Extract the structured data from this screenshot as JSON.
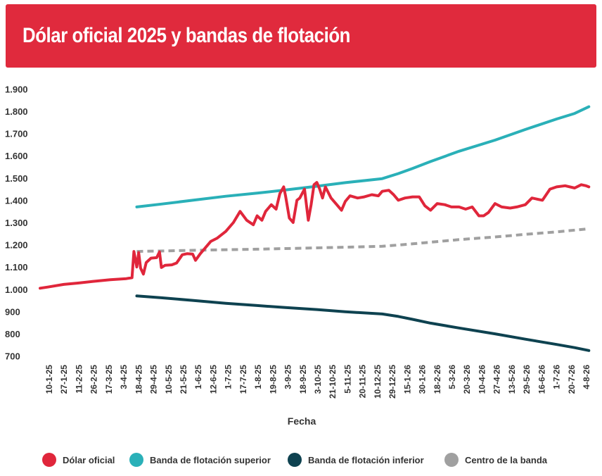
{
  "title": "Dólar oficial 2025 y bandas de flotación",
  "chart_data": {
    "type": "line",
    "xlabel": "Fecha",
    "ylabel": "",
    "ylim": [
      680,
      1920
    ],
    "yticks": [
      700,
      800,
      900,
      1000,
      1100,
      1200,
      1300,
      1400,
      1500,
      1600,
      1700,
      1800,
      1900
    ],
    "ytick_labels": [
      "700",
      "800",
      "900",
      "1.000",
      "1.100",
      "1.200",
      "1.300",
      "1.400",
      "1.500",
      "1.600",
      "1.700",
      "1.800",
      "1.900"
    ],
    "xlim": [
      "2025-01-02",
      "2026-08-06"
    ],
    "xtick_labels": [
      "10-1-25",
      "27-1-25",
      "11-2-25",
      "26-2-25",
      "17-3-25",
      "3-4-25",
      "18-4-25",
      "29-4-25",
      "10-5-25",
      "21-5-25",
      "1-6-25",
      "12-6-25",
      "1-7-25",
      "17-7-25",
      "1-8-25",
      "19-8-25",
      "3-9-25",
      "18-9-25",
      "3-10-25",
      "21-10-25",
      "5-11-25",
      "20-11-25",
      "10-12-25",
      "29-12-25",
      "15-1-26",
      "30-1-26",
      "18-2-26",
      "5-3-26",
      "20-3-26",
      "10-4-26",
      "27-4-26",
      "13-5-26",
      "29-5-26",
      "16-6-26",
      "1-7-26",
      "20-7-26",
      "4-8-26"
    ],
    "grid": false,
    "legend_position": "bottom",
    "series": [
      {
        "name": "Dólar oficial",
        "color": "#e0263b",
        "style": "solid",
        "points": [
          [
            "2025-01-02",
            1005
          ],
          [
            "2025-01-10",
            1010
          ],
          [
            "2025-01-27",
            1022
          ],
          [
            "2025-02-11",
            1028
          ],
          [
            "2025-02-26",
            1035
          ],
          [
            "2025-03-17",
            1043
          ],
          [
            "2025-04-03",
            1048
          ],
          [
            "2025-04-09",
            1052
          ],
          [
            "2025-04-11",
            1170
          ],
          [
            "2025-04-14",
            1100
          ],
          [
            "2025-04-16",
            1165
          ],
          [
            "2025-04-18",
            1095
          ],
          [
            "2025-04-21",
            1068
          ],
          [
            "2025-04-24",
            1120
          ],
          [
            "2025-04-29",
            1140
          ],
          [
            "2025-05-05",
            1142
          ],
          [
            "2025-05-08",
            1168
          ],
          [
            "2025-05-10",
            1098
          ],
          [
            "2025-05-14",
            1108
          ],
          [
            "2025-05-21",
            1110
          ],
          [
            "2025-05-26",
            1118
          ],
          [
            "2025-06-01",
            1155
          ],
          [
            "2025-06-06",
            1160
          ],
          [
            "2025-06-12",
            1158
          ],
          [
            "2025-06-15",
            1130
          ],
          [
            "2025-06-20",
            1160
          ],
          [
            "2025-07-01",
            1215
          ],
          [
            "2025-07-08",
            1230
          ],
          [
            "2025-07-17",
            1260
          ],
          [
            "2025-07-25",
            1300
          ],
          [
            "2025-08-01",
            1350
          ],
          [
            "2025-08-08",
            1310
          ],
          [
            "2025-08-15",
            1290
          ],
          [
            "2025-08-19",
            1330
          ],
          [
            "2025-08-24",
            1310
          ],
          [
            "2025-08-28",
            1350
          ],
          [
            "2025-09-03",
            1380
          ],
          [
            "2025-09-08",
            1360
          ],
          [
            "2025-09-12",
            1430
          ],
          [
            "2025-09-16",
            1460
          ],
          [
            "2025-09-18",
            1420
          ],
          [
            "2025-09-22",
            1320
          ],
          [
            "2025-09-26",
            1300
          ],
          [
            "2025-09-30",
            1400
          ],
          [
            "2025-10-03",
            1410
          ],
          [
            "2025-10-08",
            1450
          ],
          [
            "2025-10-12",
            1310
          ],
          [
            "2025-10-15",
            1380
          ],
          [
            "2025-10-18",
            1470
          ],
          [
            "2025-10-21",
            1480
          ],
          [
            "2025-10-24",
            1450
          ],
          [
            "2025-10-27",
            1410
          ],
          [
            "2025-10-30",
            1460
          ],
          [
            "2025-11-05",
            1410
          ],
          [
            "2025-11-10",
            1385
          ],
          [
            "2025-11-16",
            1355
          ],
          [
            "2025-11-20",
            1395
          ],
          [
            "2025-11-25",
            1420
          ],
          [
            "2025-12-03",
            1410
          ],
          [
            "2025-12-10",
            1415
          ],
          [
            "2025-12-18",
            1425
          ],
          [
            "2025-12-25",
            1420
          ],
          [
            "2025-12-29",
            1440
          ],
          [
            "2026-01-05",
            1445
          ],
          [
            "2026-01-10",
            1425
          ],
          [
            "2026-01-15",
            1400
          ],
          [
            "2026-01-22",
            1410
          ],
          [
            "2026-01-30",
            1415
          ],
          [
            "2026-02-06",
            1415
          ],
          [
            "2026-02-12",
            1375
          ],
          [
            "2026-02-18",
            1355
          ],
          [
            "2026-02-25",
            1385
          ],
          [
            "2026-03-05",
            1380
          ],
          [
            "2026-03-12",
            1370
          ],
          [
            "2026-03-20",
            1370
          ],
          [
            "2026-03-27",
            1360
          ],
          [
            "2026-04-03",
            1370
          ],
          [
            "2026-04-10",
            1330
          ],
          [
            "2026-04-15",
            1330
          ],
          [
            "2026-04-20",
            1345
          ],
          [
            "2026-04-27",
            1385
          ],
          [
            "2026-05-04",
            1370
          ],
          [
            "2026-05-13",
            1365
          ],
          [
            "2026-05-20",
            1370
          ],
          [
            "2026-05-29",
            1380
          ],
          [
            "2026-06-05",
            1410
          ],
          [
            "2026-06-16",
            1400
          ],
          [
            "2026-06-24",
            1450
          ],
          [
            "2026-07-01",
            1460
          ],
          [
            "2026-07-10",
            1465
          ],
          [
            "2026-07-20",
            1455
          ],
          [
            "2026-07-27",
            1470
          ],
          [
            "2026-08-01",
            1465
          ],
          [
            "2026-08-04",
            1460
          ]
        ]
      },
      {
        "name": "Banda de flotación superior",
        "color": "#2ab0b8",
        "style": "solid",
        "points": [
          [
            "2025-04-14",
            1370
          ],
          [
            "2025-05-10",
            1383
          ],
          [
            "2025-06-12",
            1400
          ],
          [
            "2025-07-17",
            1418
          ],
          [
            "2025-08-19",
            1432
          ],
          [
            "2025-09-18",
            1446
          ],
          [
            "2025-10-21",
            1463
          ],
          [
            "2025-11-20",
            1479
          ],
          [
            "2025-12-29",
            1497
          ],
          [
            "2026-01-15",
            1520
          ],
          [
            "2026-01-30",
            1543
          ],
          [
            "2026-02-18",
            1574
          ],
          [
            "2026-03-20",
            1620
          ],
          [
            "2026-04-27",
            1670
          ],
          [
            "2026-05-29",
            1718
          ],
          [
            "2026-07-01",
            1765
          ],
          [
            "2026-07-20",
            1790
          ],
          [
            "2026-08-04",
            1820
          ]
        ]
      },
      {
        "name": "Banda de flotación inferior",
        "color": "#0e4250",
        "style": "solid",
        "points": [
          [
            "2025-04-14",
            970
          ],
          [
            "2025-05-10",
            962
          ],
          [
            "2025-06-12",
            950
          ],
          [
            "2025-07-17",
            937
          ],
          [
            "2025-08-19",
            927
          ],
          [
            "2025-09-18",
            918
          ],
          [
            "2025-10-21",
            909
          ],
          [
            "2025-11-20",
            899
          ],
          [
            "2025-12-29",
            889
          ],
          [
            "2026-01-15",
            878
          ],
          [
            "2026-01-30",
            865
          ],
          [
            "2026-02-18",
            848
          ],
          [
            "2026-03-20",
            826
          ],
          [
            "2026-04-27",
            800
          ],
          [
            "2026-05-29",
            776
          ],
          [
            "2026-07-01",
            752
          ],
          [
            "2026-07-20",
            738
          ],
          [
            "2026-08-04",
            725
          ]
        ]
      },
      {
        "name": "Centro de la banda",
        "color": "#a0a0a0",
        "style": "dashed",
        "points": [
          [
            "2025-04-14",
            1170
          ],
          [
            "2025-06-12",
            1175
          ],
          [
            "2025-08-19",
            1180
          ],
          [
            "2025-10-21",
            1186
          ],
          [
            "2025-12-29",
            1193
          ],
          [
            "2026-01-30",
            1204
          ],
          [
            "2026-03-20",
            1223
          ],
          [
            "2026-04-27",
            1235
          ],
          [
            "2026-05-29",
            1247
          ],
          [
            "2026-07-01",
            1258
          ],
          [
            "2026-08-04",
            1272
          ]
        ]
      }
    ]
  }
}
